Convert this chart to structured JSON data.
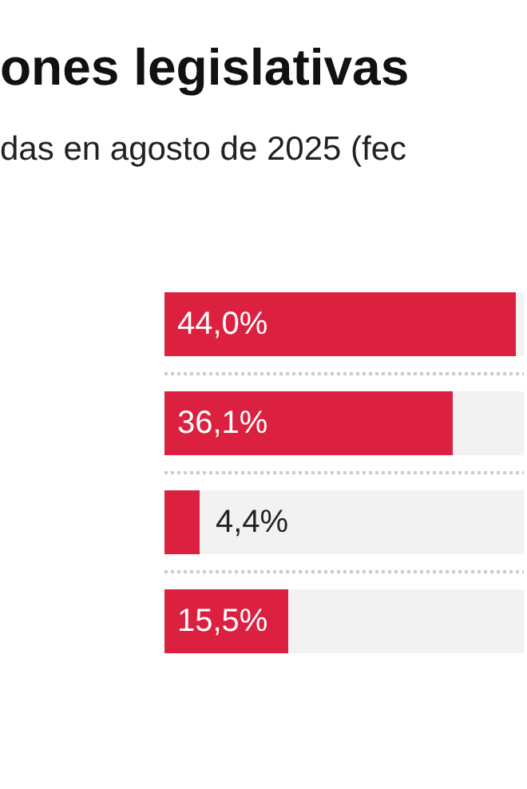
{
  "chart_data": {
    "type": "bar",
    "orientation": "horizontal",
    "title": "ones legislativas",
    "subtitle": "das en agosto de 2025 (fec",
    "categories": [
      null,
      null,
      null,
      null
    ],
    "series": [
      {
        "color": "#dc2040",
        "values": [
          44.0,
          36.1,
          4.4,
          15.5
        ],
        "value_labels": [
          "44,0%",
          "36,1%",
          "4,4%",
          "15,5%"
        ]
      }
    ],
    "xlim": [
      0,
      45
    ],
    "tick_labels": false,
    "grid": "y"
  }
}
